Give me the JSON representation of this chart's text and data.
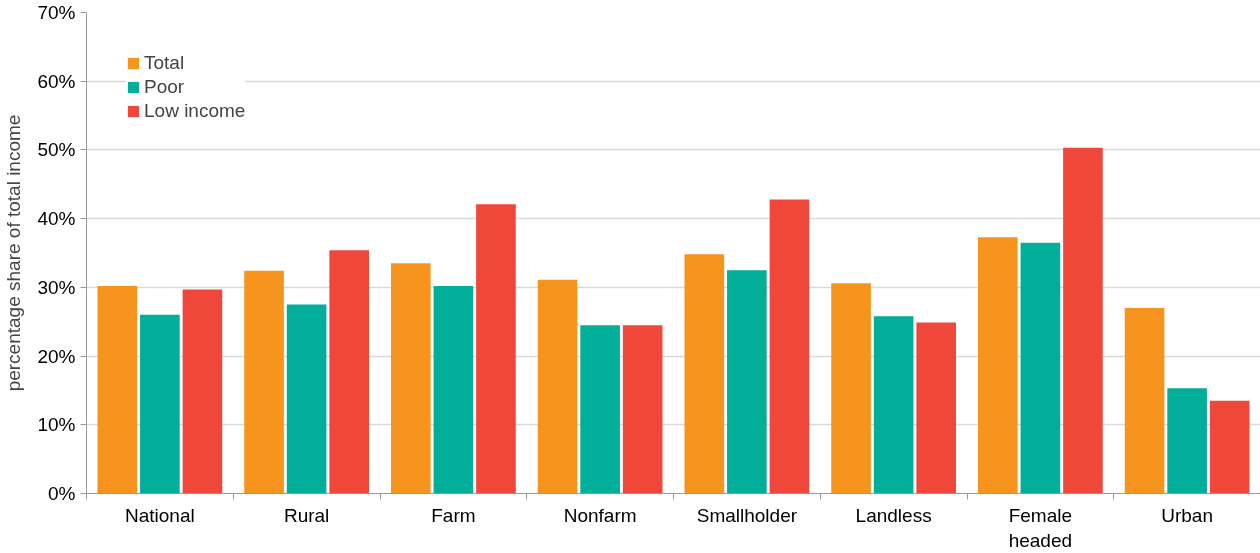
{
  "chart_data": {
    "type": "bar",
    "ylabel": "percentage share of total income",
    "categories": [
      "National",
      "Rural",
      "Farm",
      "Nonfarm",
      "Smallholder",
      "Landless",
      "Female headed",
      "Urban"
    ],
    "series": [
      {
        "name": "Total",
        "color": "#f7941d",
        "values": [
          30.2,
          32.4,
          33.5,
          31.1,
          34.8,
          30.6,
          37.3,
          27.0
        ]
      },
      {
        "name": "Poor",
        "color": "#00ae9a",
        "values": [
          26.0,
          27.5,
          30.2,
          24.5,
          32.5,
          25.8,
          36.5,
          15.3
        ]
      },
      {
        "name": "Low income",
        "color": "#ef473a",
        "values": [
          29.7,
          35.4,
          42.1,
          24.5,
          42.8,
          24.9,
          50.3,
          13.5
        ]
      }
    ],
    "ylim": [
      0,
      70
    ],
    "yticks": [
      {
        "value": 0,
        "label": "0%"
      },
      {
        "value": 10,
        "label": "10%"
      },
      {
        "value": 20,
        "label": "20%"
      },
      {
        "value": 30,
        "label": "30%"
      },
      {
        "value": 40,
        "label": "40%"
      },
      {
        "value": 50,
        "label": "50%"
      },
      {
        "value": 60,
        "label": "60%"
      },
      {
        "value": 70,
        "label": "70%"
      }
    ],
    "grid": "y",
    "legend": "top left"
  }
}
